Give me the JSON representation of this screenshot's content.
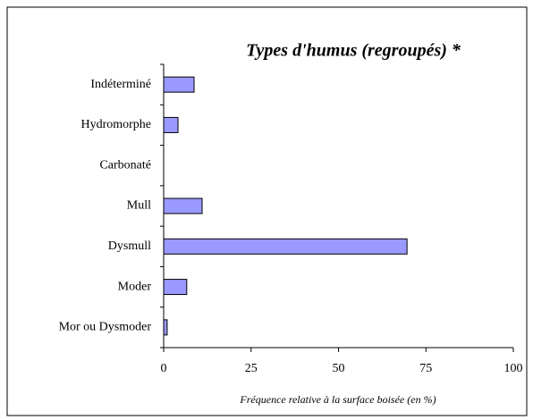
{
  "chart_data": {
    "type": "bar",
    "orientation": "horizontal",
    "title": "Types d'humus (regroupés) *",
    "x_label": "Fréquence relative à la surface boisée (en %)",
    "categories": [
      "Indéterminé",
      "Hydromorphe",
      "Carbonaté",
      "Mull",
      "Dysmull",
      "Moder",
      "Mor ou Dysmoder"
    ],
    "values": [
      8.7,
      4.1,
      0,
      11,
      69.6,
      6.6,
      1
    ],
    "color": "#9999ff",
    "xlim": [
      0,
      100
    ],
    "xticks": [
      0,
      25,
      50,
      75,
      100
    ],
    "grid": false
  }
}
